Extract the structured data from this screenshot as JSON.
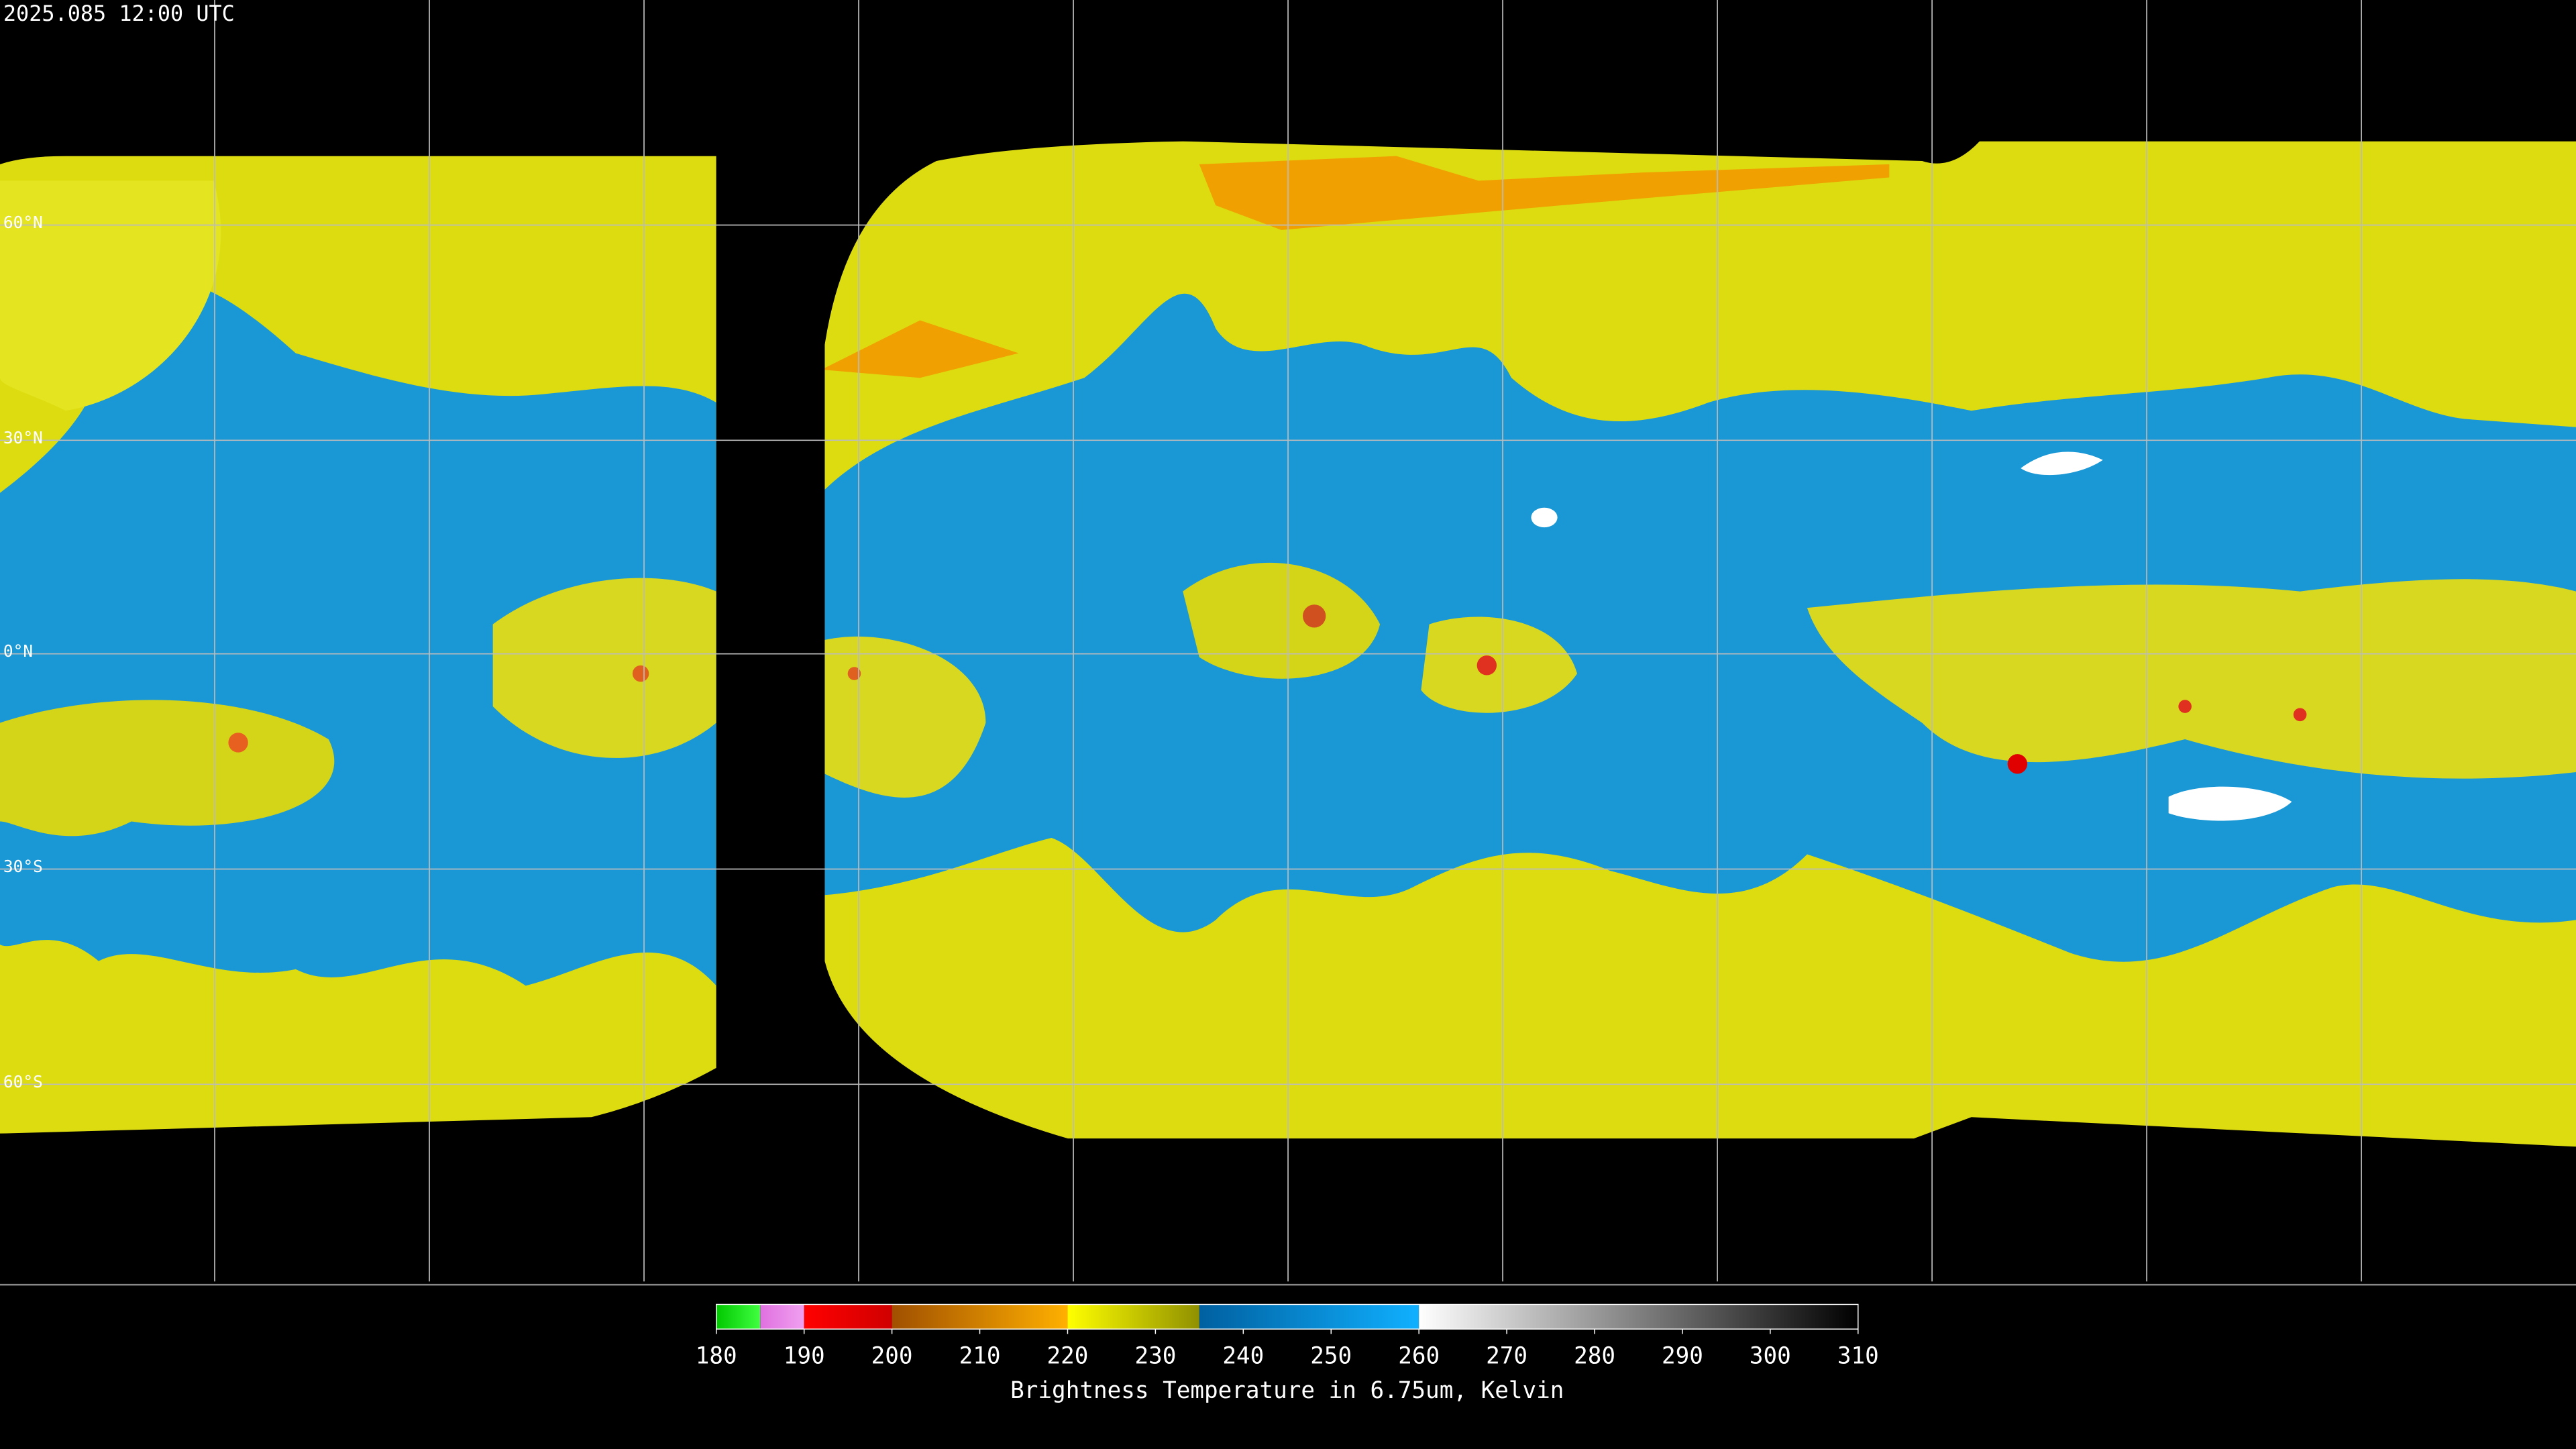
{
  "header": {
    "timestamp": "2025.085 12:00 UTC"
  },
  "map": {
    "latitude_labels": [
      "60°N",
      "30°N",
      "0°N",
      "30°S",
      "60°S"
    ]
  },
  "colorbar": {
    "title": "Brightness Temperature in 6.75um, Kelvin",
    "lim": [
      180,
      310
    ],
    "ticks": [
      180,
      190,
      200,
      210,
      220,
      230,
      240,
      250,
      260,
      270,
      280,
      290,
      300,
      310
    ],
    "segments": [
      {
        "range": [
          180,
          185
        ],
        "colors": [
          "#00c800",
          "#40ff40"
        ]
      },
      {
        "range": [
          185,
          190
        ],
        "colors": [
          "#e070e0",
          "#f0a0f0"
        ]
      },
      {
        "range": [
          190,
          200
        ],
        "colors": [
          "#ff0000",
          "#d00000"
        ]
      },
      {
        "range": [
          200,
          220
        ],
        "colors": [
          "#a05000",
          "#ffb000"
        ]
      },
      {
        "range": [
          220,
          235
        ],
        "colors": [
          "#ffff00",
          "#909000"
        ]
      },
      {
        "range": [
          235,
          260
        ],
        "colors": [
          "#0060a0",
          "#10b0ff"
        ]
      },
      {
        "range": [
          260,
          310
        ],
        "colors": [
          "#ffffff",
          "#000000"
        ]
      }
    ]
  }
}
